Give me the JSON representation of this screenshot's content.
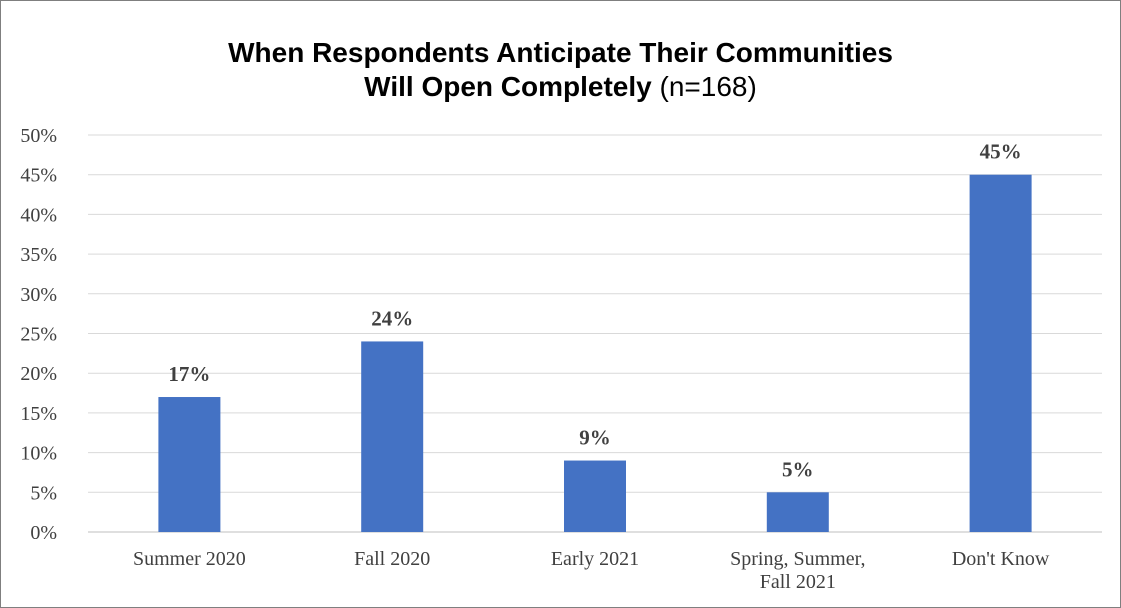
{
  "chart_data": {
    "type": "bar",
    "title_line1": "When Respondents Anticipate Their Communities",
    "title_line2_bold": "Will Open Completely",
    "title_line2_rest": " (n=168)",
    "categories": [
      [
        "Summer 2020"
      ],
      [
        "Fall 2020"
      ],
      [
        "Early 2021"
      ],
      [
        "Spring, Summer,",
        "Fall 2021"
      ],
      [
        "Don't Know"
      ]
    ],
    "values": [
      17,
      24,
      9,
      5,
      45
    ],
    "value_labels": [
      "17%",
      "24%",
      "9%",
      "5%",
      "45%"
    ],
    "ylim": [
      0,
      50
    ],
    "yticks": [
      0,
      5,
      10,
      15,
      20,
      25,
      30,
      35,
      40,
      45,
      50
    ],
    "ytick_labels": [
      "0%",
      "5%",
      "10%",
      "15%",
      "20%",
      "25%",
      "30%",
      "35%",
      "40%",
      "45%",
      "50%"
    ],
    "grid": true,
    "legend": "none",
    "colors": {
      "bar": "#4472C4",
      "grid": "#d9d9d9",
      "text": "#404040"
    }
  }
}
